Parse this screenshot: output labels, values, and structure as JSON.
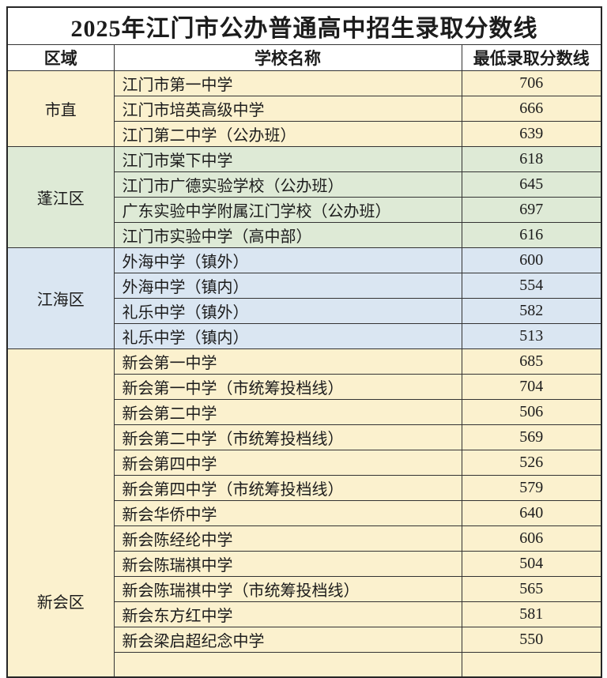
{
  "page_title": "2025年江门市公办普通高中招生录取分数线",
  "table": {
    "headers": [
      "区域",
      "学校名称",
      "最低录取分数线"
    ],
    "clipped_partial_row": true,
    "colors": {
      "border": "#333333",
      "outer_border": "#262626",
      "text": "#1c1c1c",
      "header_bg": "#ffffff",
      "cream_section": "#FBF1CE",
      "green_section": "#DEEAD6",
      "blue_section": "#DAE6F2"
    },
    "sections": [
      {
        "region": "市直",
        "bg": "#FBF1CE",
        "rows": [
          {
            "school": "江门市第一中学",
            "score": "706"
          },
          {
            "school": "江门市培英高级中学",
            "score": "666"
          },
          {
            "school": "江门第二中学（公办班）",
            "score": "639"
          }
        ]
      },
      {
        "region": "蓬江区",
        "bg": "#DEEAD6",
        "rows": [
          {
            "school": "江门市棠下中学",
            "score": "618"
          },
          {
            "school": "江门市广德实验学校（公办班）",
            "score": "645"
          },
          {
            "school": "广东实验中学附属江门学校（公办班）",
            "score": "697"
          },
          {
            "school": "江门市实验中学（高中部）",
            "score": "616"
          }
        ]
      },
      {
        "region": "江海区",
        "bg": "#DAE6F2",
        "rows": [
          {
            "school": "外海中学（镇外）",
            "score": "600"
          },
          {
            "school": "外海中学（镇内）",
            "score": "554"
          },
          {
            "school": "礼乐中学（镇外）",
            "score": "582"
          },
          {
            "school": "礼乐中学（镇内）",
            "score": "513"
          }
        ]
      },
      {
        "region": "新会区",
        "bg": "#FBF1CE",
        "rows": [
          {
            "school": "新会第一中学",
            "score": "685"
          },
          {
            "school": "新会第一中学（市统筹投档线）",
            "score": "704"
          },
          {
            "school": "新会第二中学",
            "score": "506"
          },
          {
            "school": "新会第二中学（市统筹投档线）",
            "score": "569"
          },
          {
            "school": "新会第四中学",
            "score": "526"
          },
          {
            "school": "新会第四中学（市统筹投档线）",
            "score": "579"
          },
          {
            "school": "新会华侨中学",
            "score": "640"
          },
          {
            "school": "新会陈经纶中学",
            "score": "606"
          },
          {
            "school": "新会陈瑞祺中学",
            "score": "504"
          },
          {
            "school": "新会陈瑞祺中学（市统筹投档线）",
            "score": "565"
          },
          {
            "school": "新会东方红中学",
            "score": "581"
          },
          {
            "school": "新会梁启超纪念中学",
            "score": "550"
          }
        ]
      }
    ]
  }
}
